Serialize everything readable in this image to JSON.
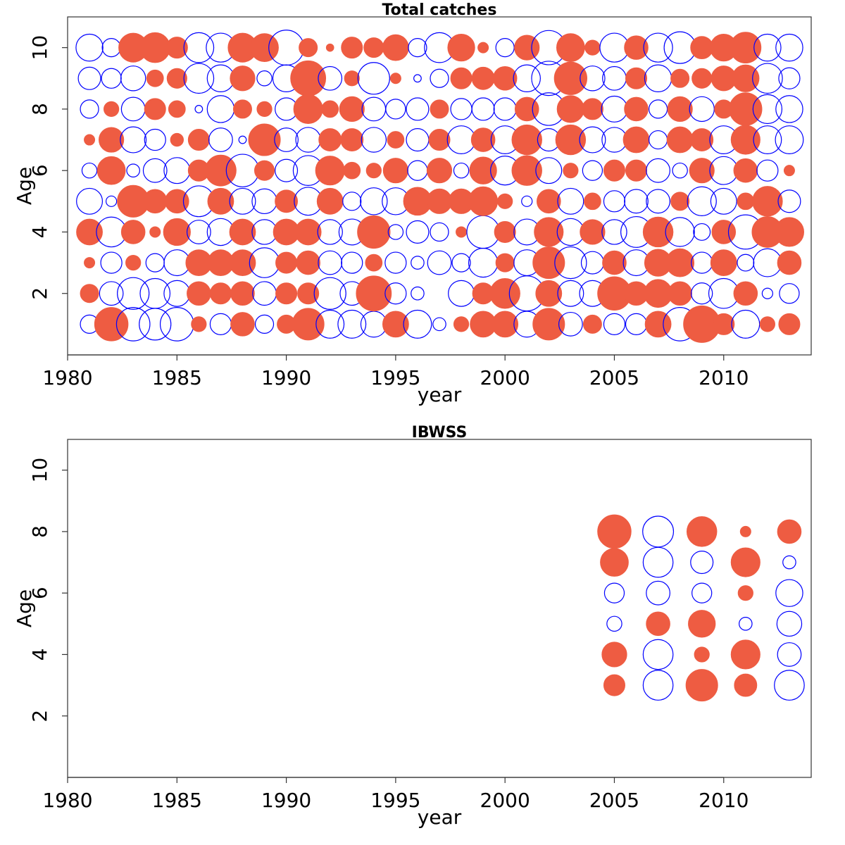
{
  "colors": {
    "positive": "#EE5C42",
    "negative": "#0000FF",
    "frame": "#333333",
    "text": "#000000"
  },
  "chart_data": [
    {
      "type": "scatter",
      "subtype": "bubble",
      "title": "Total catches",
      "xlabel": "year",
      "ylabel": "Age",
      "xlim": [
        1980,
        2014
      ],
      "ylim": [
        0,
        11
      ],
      "xticks": [
        "1980",
        "1985",
        "1990",
        "1995",
        "2000",
        "2005",
        "2010"
      ],
      "yticks": [
        "2",
        "4",
        "6",
        "8",
        "10"
      ],
      "years": [
        1981,
        1982,
        1983,
        1984,
        1985,
        1986,
        1987,
        1988,
        1989,
        1990,
        1991,
        1992,
        1993,
        1994,
        1995,
        1996,
        1997,
        1998,
        1999,
        2000,
        2001,
        2002,
        2003,
        2004,
        2005,
        2006,
        2007,
        2008,
        2009,
        2010,
        2011,
        2012,
        2013
      ],
      "ages": [
        1,
        2,
        3,
        4,
        5,
        6,
        7,
        8,
        9,
        10
      ],
      "note": "values are residuals; positive = filled orange-red circles, negative = open blue circles; magnitude = circle size",
      "residuals_by_age": {
        "1": [
          -0.3,
          1.0,
          -1.0,
          -0.9,
          -1.0,
          0.2,
          -0.4,
          0.5,
          -0.3,
          0.3,
          0.9,
          -0.7,
          -0.7,
          -0.6,
          0.6,
          -0.7,
          -0.15,
          0.2,
          0.6,
          0.6,
          -0.6,
          0.9,
          -0.5,
          0.3,
          -0.4,
          -0.4,
          0.6,
          -1.0,
          1.2,
          0.4,
          -0.7,
          0.2,
          0.4
        ],
        "2": [
          0.3,
          -0.5,
          -0.9,
          -0.8,
          -0.6,
          0.5,
          0.4,
          0.5,
          -0.5,
          0.4,
          0.4,
          -0.9,
          -0.5,
          1.1,
          -0.4,
          -0.15,
          0,
          -0.6,
          0.4,
          0.8,
          -1.1,
          0.6,
          -0.6,
          -0.6,
          1.0,
          0.5,
          0.7,
          0.5,
          -0.4,
          -0.8,
          0.5,
          -0.1,
          -0.35
        ],
        "3": [
          0.1,
          -0.4,
          0.2,
          -0.3,
          -0.6,
          0.6,
          0.6,
          0.6,
          -0.8,
          0.4,
          0.5,
          -0.5,
          -0.4,
          0.25,
          -0.4,
          -0.15,
          -0.5,
          -0.3,
          -0.75,
          0.3,
          -0.6,
          0.9,
          -0.9,
          -0.45,
          0.5,
          -0.6,
          0.65,
          0.7,
          -0.4,
          0.6,
          -0.25,
          -0.7,
          0.5
        ],
        "4": [
          0.6,
          -0.8,
          0.5,
          0.1,
          0.65,
          -0.5,
          -0.65,
          0.6,
          -0.55,
          0.6,
          0.6,
          -0.55,
          -0.6,
          0.95,
          -0.2,
          -0.45,
          -0.3,
          0.1,
          -0.95,
          0.4,
          -0.6,
          0.75,
          -0.65,
          0.55,
          -0.55,
          -0.85,
          0.8,
          -0.75,
          -0.25,
          0.5,
          -1.05,
          0.85,
          0.75
        ],
        "5": [
          -0.6,
          -0.1,
          0.9,
          0.5,
          0.5,
          -0.85,
          0.6,
          -0.6,
          -0.55,
          0.45,
          -0.7,
          0.6,
          -0.3,
          -0.65,
          -0.65,
          0.7,
          0.55,
          0.55,
          0.75,
          0.2,
          -0.1,
          0.5,
          -0.6,
          0.25,
          -0.4,
          -0.5,
          -0.5,
          0.3,
          -0.75,
          -0.6,
          0.25,
          0.8,
          -0.45
        ],
        "6": [
          -0.2,
          0.7,
          -0.15,
          -0.5,
          -0.6,
          0.4,
          0.85,
          -0.95,
          0.35,
          -0.45,
          -0.8,
          0.75,
          0.25,
          0.2,
          0.55,
          -0.35,
          0.55,
          -0.2,
          0.65,
          -0.75,
          0.8,
          -0.6,
          0.2,
          -0.35,
          0.4,
          0.4,
          -0.5,
          -0.2,
          0.55,
          -0.7,
          0.5,
          -0.4,
          0.1
        ],
        "7": [
          0.1,
          0.55,
          -0.6,
          -0.4,
          0.15,
          0.4,
          -0.5,
          -0.05,
          0.9,
          -0.5,
          -0.55,
          0.45,
          0.45,
          -0.55,
          0.25,
          -0.45,
          0.4,
          -0.7,
          0.5,
          -0.7,
          0.8,
          -0.45,
          0.8,
          -0.6,
          -0.55,
          0.6,
          -0.3,
          0.6,
          0.45,
          -0.7,
          0.75,
          -0.7,
          -0.7
        ],
        "8": [
          -0.3,
          0.2,
          -0.5,
          0.4,
          0.25,
          -0.05,
          -0.65,
          0.3,
          0.2,
          -0.45,
          0.75,
          0.25,
          0.55,
          -0.5,
          -0.35,
          -0.45,
          0.3,
          -0.4,
          -0.45,
          -0.45,
          0.5,
          -0.95,
          0.65,
          0.4,
          -0.6,
          0.5,
          -0.3,
          0.55,
          -0.55,
          0.3,
          0.95,
          -0.75,
          -0.65
        ],
        "9": [
          -0.45,
          -0.35,
          -0.55,
          0.25,
          0.35,
          -0.8,
          -0.65,
          0.55,
          -0.2,
          -0.65,
          1.1,
          -0.5,
          0.2,
          -0.9,
          0.1,
          -0.05,
          -0.3,
          0.4,
          0.45,
          0.5,
          -0.65,
          -1.05,
          0.95,
          -0.55,
          -0.5,
          0.4,
          -0.65,
          0.3,
          0.35,
          0.55,
          0.65,
          -0.8,
          -0.4
        ],
        "10": [
          -0.65,
          -0.3,
          0.75,
          0.8,
          0.4,
          -0.8,
          -0.75,
          0.75,
          0.7,
          -1.1,
          0.3,
          0.05,
          0.4,
          0.35,
          0.6,
          -0.3,
          -0.8,
          0.65,
          0.1,
          -0.3,
          0.55,
          -1.05,
          0.7,
          0.2,
          -0.75,
          0.5,
          -0.75,
          -0.9,
          0.45,
          0.65,
          0.85,
          -0.65,
          -0.65
        ]
      }
    },
    {
      "type": "scatter",
      "subtype": "bubble",
      "title": "IBWSS",
      "xlabel": "year",
      "ylabel": "Age",
      "xlim": [
        1980,
        2014
      ],
      "ylim": [
        0,
        11
      ],
      "xticks": [
        "1980",
        "1985",
        "1990",
        "1995",
        "2000",
        "2005",
        "2010"
      ],
      "yticks": [
        "2",
        "4",
        "6",
        "8",
        "10"
      ],
      "years": [
        2005,
        2007,
        2009,
        2011,
        2013
      ],
      "ages": [
        3,
        4,
        5,
        6,
        7,
        8
      ],
      "note": "values are residuals; positive = filled orange-red circles, negative = open blue circles; magnitude = circle size",
      "residuals_by_age": {
        "3": [
          0.4,
          -0.8,
          0.9,
          0.45,
          -0.8
        ],
        "4": [
          0.55,
          -0.8,
          0.2,
          0.75,
          -0.5
        ],
        "5": [
          -0.2,
          0.5,
          0.65,
          -0.15,
          -0.55
        ],
        "6": [
          -0.35,
          -0.5,
          -0.35,
          0.2,
          -0.65
        ],
        "7": [
          0.7,
          -0.8,
          -0.45,
          0.75,
          -0.15
        ],
        "8": [
          1.0,
          -0.85,
          0.8,
          0.1,
          0.5
        ]
      }
    }
  ]
}
